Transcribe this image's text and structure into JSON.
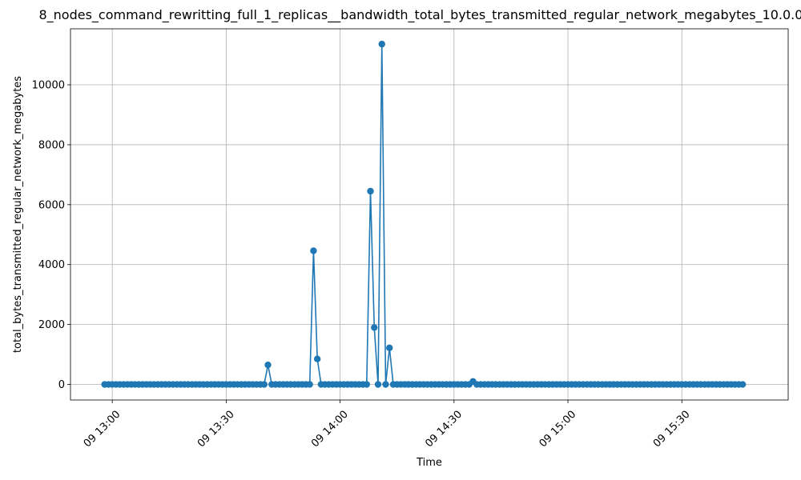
{
  "chart_data": {
    "type": "line",
    "title": "8_nodes_command_rewritting_full_1_replicas__bandwidth_total_bytes_transmitted_regular_network_megabytes_10.0.0.",
    "xlabel": "Time",
    "ylabel": "total_bytes_transmitted_regular_network_megabytes",
    "x_range": [
      "2000-01-09 12:49",
      "2000-01-09 15:58"
    ],
    "ylim": [
      -520,
      11870
    ],
    "grid": true,
    "line_color": "#1f77b4",
    "x_ticks": [
      {
        "time": "2000-01-09 13:00",
        "label": "09 13:00"
      },
      {
        "time": "2000-01-09 13:30",
        "label": "09 13:30"
      },
      {
        "time": "2000-01-09 14:00",
        "label": "09 14:00"
      },
      {
        "time": "2000-01-09 14:30",
        "label": "09 14:30"
      },
      {
        "time": "2000-01-09 15:00",
        "label": "09 15:00"
      },
      {
        "time": "2000-01-09 15:30",
        "label": "09 15:30"
      }
    ],
    "y_ticks": [
      {
        "value": 0,
        "label": "0"
      },
      {
        "value": 2000,
        "label": "2000"
      },
      {
        "value": 4000,
        "label": "4000"
      },
      {
        "value": 6000,
        "label": "6000"
      },
      {
        "value": 8000,
        "label": "8000"
      },
      {
        "value": 10000,
        "label": "10000"
      }
    ],
    "series": [
      {
        "start": "2000-01-09 12:58",
        "step_minutes": 1,
        "values": [
          0,
          0,
          0,
          0,
          0,
          0,
          0,
          0,
          0,
          0,
          0,
          0,
          0,
          0,
          0,
          0,
          0,
          0,
          0,
          0,
          0,
          0,
          0,
          0,
          0,
          0,
          0,
          0,
          0,
          0,
          0,
          0,
          0,
          0,
          0,
          0,
          0,
          0,
          0,
          0,
          0,
          0,
          0,
          650,
          0,
          0,
          0,
          0,
          0,
          0,
          0,
          0,
          0,
          0,
          0,
          4460,
          850,
          0,
          0,
          0,
          0,
          0,
          0,
          0,
          0,
          0,
          0,
          0,
          0,
          0,
          6450,
          1900,
          0,
          11360,
          0,
          1220,
          0,
          0,
          0,
          0,
          0,
          0,
          0,
          0,
          0,
          0,
          0,
          0,
          0,
          0,
          0,
          0,
          0,
          0,
          0,
          0,
          0,
          100,
          0,
          0,
          0,
          0,
          0,
          0,
          0,
          0,
          0,
          0,
          0,
          0,
          0,
          0,
          0,
          0,
          0,
          0,
          0,
          0,
          0,
          0,
          0,
          0,
          0,
          0,
          0,
          0,
          0,
          0,
          0,
          0,
          0,
          0,
          0,
          0,
          0,
          0,
          0,
          0,
          0,
          0,
          0,
          0,
          0,
          0,
          0,
          0,
          0,
          0,
          0,
          0,
          0,
          0,
          0,
          0,
          0,
          0,
          0,
          0,
          0,
          0,
          0,
          0,
          0,
          0,
          0,
          0,
          0,
          0,
          0
        ]
      }
    ]
  }
}
